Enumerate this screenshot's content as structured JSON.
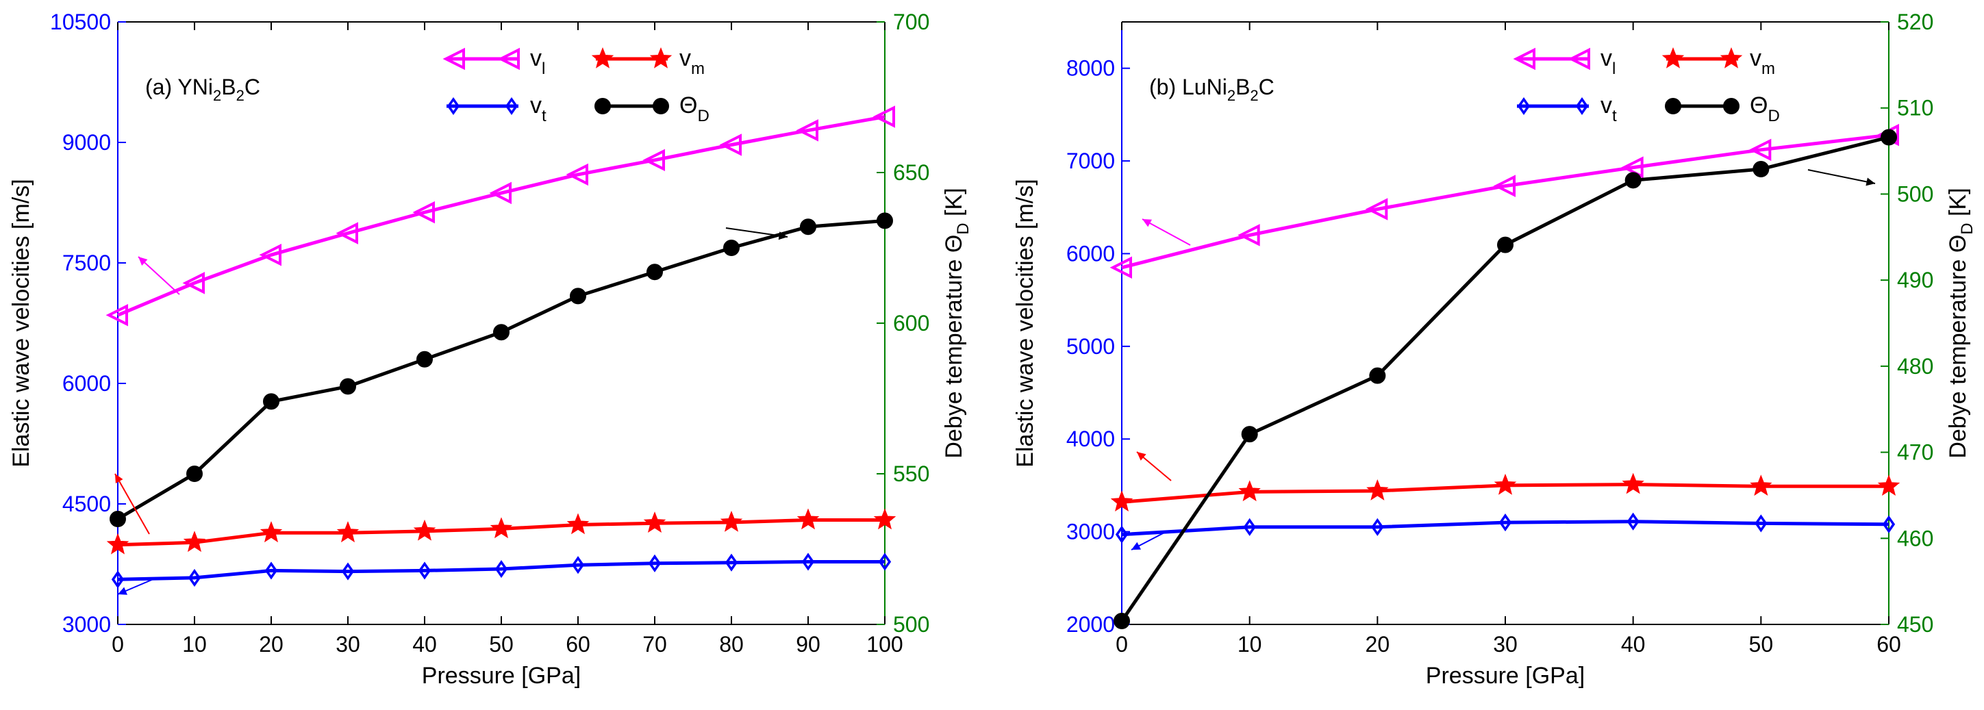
{
  "chart_data": [
    {
      "type": "line",
      "panel_label": "(a) YNi",
      "panel_sub1": "2",
      "panel_mid": "B",
      "panel_sub2": "2",
      "panel_end": "C",
      "xlabel": "Pressure [GPa]",
      "ylabel": "Elastic wave velocities [m/s]",
      "ylabel_right_prefix": "Debye temperature Θ",
      "ylabel_right_sub": "D",
      "ylabel_right_suffix": " [K]",
      "x": [
        0,
        10,
        20,
        30,
        40,
        50,
        60,
        70,
        80,
        90,
        100
      ],
      "xlim": [
        0,
        100
      ],
      "xticks": [
        0,
        10,
        20,
        30,
        40,
        50,
        60,
        70,
        80,
        90,
        100
      ],
      "ylim": [
        3000,
        10500
      ],
      "yticks": [
        3000,
        4500,
        6000,
        7500,
        9000,
        10500
      ],
      "y2lim": [
        500,
        700
      ],
      "y2ticks": [
        500,
        550,
        600,
        650,
        700
      ],
      "series": [
        {
          "name": "v",
          "sub": "l",
          "marker": "triangle-left",
          "color": "#ff00ff",
          "axis": "left",
          "values": [
            6850,
            7250,
            7600,
            7870,
            8130,
            8370,
            8600,
            8780,
            8970,
            9150,
            9320
          ]
        },
        {
          "name": "v",
          "sub": "t",
          "marker": "diamond",
          "color": "#0000ff",
          "axis": "left",
          "values": [
            3560,
            3580,
            3670,
            3660,
            3670,
            3690,
            3740,
            3760,
            3770,
            3780,
            3780
          ]
        },
        {
          "name": "v",
          "sub": "m",
          "marker": "star",
          "color": "#ff0000",
          "axis": "left",
          "values": [
            3990,
            4020,
            4140,
            4140,
            4160,
            4190,
            4240,
            4260,
            4270,
            4300,
            4300
          ]
        },
        {
          "name": "Θ",
          "sub": "D",
          "marker": "circle",
          "color": "#000000",
          "axis": "right",
          "values": [
            535,
            550,
            574,
            579,
            588,
            597,
            609,
            617,
            625,
            632,
            634
          ]
        }
      ]
    },
    {
      "type": "line",
      "panel_label": "(b) LuNi",
      "panel_sub1": "2",
      "panel_mid": "B",
      "panel_sub2": "2",
      "panel_end": "C",
      "xlabel": "Pressure [GPa]",
      "ylabel": "Elastic wave velocities [m/s]",
      "ylabel_right_prefix": "Debye temperature Θ",
      "ylabel_right_sub": "D",
      "ylabel_right_suffix": " [K]",
      "x": [
        0,
        10,
        20,
        30,
        40,
        50,
        60
      ],
      "xlim": [
        0,
        60
      ],
      "xticks": [
        0,
        10,
        20,
        30,
        40,
        50,
        60
      ],
      "ylim": [
        2000,
        8500
      ],
      "yticks": [
        2000,
        3000,
        4000,
        5000,
        6000,
        7000,
        8000
      ],
      "y2lim": [
        450,
        520
      ],
      "y2ticks": [
        450,
        460,
        470,
        480,
        490,
        500,
        510,
        520
      ],
      "series": [
        {
          "name": "v",
          "sub": "l",
          "marker": "triangle-left",
          "color": "#ff00ff",
          "axis": "left",
          "values": [
            5850,
            6200,
            6480,
            6730,
            6930,
            7120,
            7280
          ]
        },
        {
          "name": "v",
          "sub": "t",
          "marker": "diamond",
          "color": "#0000ff",
          "axis": "left",
          "values": [
            2970,
            3050,
            3050,
            3100,
            3110,
            3090,
            3080
          ]
        },
        {
          "name": "v",
          "sub": "m",
          "marker": "star",
          "color": "#ff0000",
          "axis": "left",
          "values": [
            3320,
            3430,
            3440,
            3500,
            3510,
            3490,
            3490
          ]
        },
        {
          "name": "Θ",
          "sub": "D",
          "marker": "circle",
          "color": "#000000",
          "axis": "right",
          "values": [
            450.4,
            472.1,
            478.9,
            494.1,
            501.6,
            502.9,
            506.6
          ]
        }
      ]
    }
  ],
  "colors": {
    "left_axis": "#0000ff",
    "right_axis": "#008000",
    "frame": "#000000"
  }
}
